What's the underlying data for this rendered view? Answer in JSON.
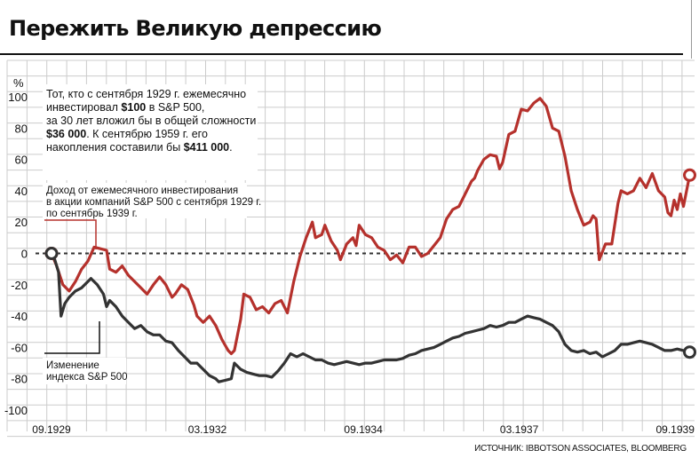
{
  "title": "Пережить Великую депрессию",
  "colors": {
    "red": "#b5312c",
    "black": "#333333",
    "grid": "#cccccc"
  },
  "annotation": {
    "line1": "Тот, кто с сентября 1929 г. ежемесячно",
    "line2_a": "инвестировал ",
    "line2_b": "$100",
    "line2_c": " в S&P 500,",
    "line3": "за 30 лет вложил бы в общей сложности",
    "line4_a": "$36 000",
    "line4_b": ". К сентябрю 1959 г. его",
    "line5_a": "накопления составили бы ",
    "line5_b": "$411 000",
    "line5_c": "."
  },
  "callout_red": {
    "line1": "Доход от ежемесячного инвестирования",
    "line2": "в акции компаний S&P 500 с сентября 1929 г.",
    "line3": "по сентябрь 1939 г."
  },
  "callout_black": {
    "line1": "Изменение",
    "line2": "индекса S&P 500"
  },
  "source": "ИСТОЧНИК: IBBOTSON ASSOCIATES, BLOOMBERG",
  "chart_data": {
    "type": "line",
    "ylabel": "%",
    "ylim": [
      -100,
      100
    ],
    "yticks": [
      100,
      80,
      60,
      40,
      20,
      0,
      -20,
      -40,
      -60,
      -80,
      -100
    ],
    "xlim": [
      1929.667,
      1939.75
    ],
    "xtick_labels": [
      {
        "label": "09.1929",
        "x": 1929.667
      },
      {
        "label": "03.1932",
        "x": 1932.167
      },
      {
        "label": "09.1934",
        "x": 1934.667
      },
      {
        "label": "03.1937",
        "x": 1937.167
      },
      {
        "label": "09.1939",
        "x": 1939.667
      }
    ],
    "series": [
      {
        "name": "Доход от ежемесячного инвестирования",
        "color": "#b5312c",
        "points": [
          [
            1929.667,
            0
          ],
          [
            1929.75,
            -8
          ],
          [
            1929.85,
            -20
          ],
          [
            1929.95,
            -24
          ],
          [
            1930.05,
            -18
          ],
          [
            1930.15,
            -10
          ],
          [
            1930.25,
            -5
          ],
          [
            1930.35,
            4
          ],
          [
            1930.45,
            3
          ],
          [
            1930.55,
            2
          ],
          [
            1930.6,
            -10
          ],
          [
            1930.7,
            -12
          ],
          [
            1930.8,
            -8
          ],
          [
            1930.9,
            -14
          ],
          [
            1931.0,
            -18
          ],
          [
            1931.1,
            -22
          ],
          [
            1931.2,
            -26
          ],
          [
            1931.3,
            -20
          ],
          [
            1931.4,
            -15
          ],
          [
            1931.5,
            -20
          ],
          [
            1931.6,
            -28
          ],
          [
            1931.65,
            -26
          ],
          [
            1931.75,
            -20
          ],
          [
            1931.85,
            -23
          ],
          [
            1931.95,
            -33
          ],
          [
            1932.0,
            -40
          ],
          [
            1932.1,
            -44
          ],
          [
            1932.2,
            -40
          ],
          [
            1932.3,
            -46
          ],
          [
            1932.4,
            -55
          ],
          [
            1932.5,
            -62
          ],
          [
            1932.55,
            -64
          ],
          [
            1932.6,
            -62
          ],
          [
            1932.7,
            -42
          ],
          [
            1932.75,
            -26
          ],
          [
            1932.85,
            -28
          ],
          [
            1932.95,
            -36
          ],
          [
            1933.05,
            -34
          ],
          [
            1933.15,
            -38
          ],
          [
            1933.25,
            -32
          ],
          [
            1933.35,
            -30
          ],
          [
            1933.45,
            -38
          ],
          [
            1933.55,
            -18
          ],
          [
            1933.65,
            -2
          ],
          [
            1933.75,
            10
          ],
          [
            1933.85,
            20
          ],
          [
            1933.9,
            10
          ],
          [
            1934.0,
            12
          ],
          [
            1934.05,
            18
          ],
          [
            1934.15,
            8
          ],
          [
            1934.25,
            2
          ],
          [
            1934.3,
            -4
          ],
          [
            1934.4,
            6
          ],
          [
            1934.5,
            10
          ],
          [
            1934.55,
            5
          ],
          [
            1934.6,
            18
          ],
          [
            1934.7,
            12
          ],
          [
            1934.8,
            10
          ],
          [
            1934.9,
            4
          ],
          [
            1935.0,
            2
          ],
          [
            1935.1,
            -4
          ],
          [
            1935.2,
            -1
          ],
          [
            1935.3,
            -6
          ],
          [
            1935.4,
            4
          ],
          [
            1935.5,
            4
          ],
          [
            1935.6,
            -2
          ],
          [
            1935.7,
            0
          ],
          [
            1935.8,
            5
          ],
          [
            1935.9,
            10
          ],
          [
            1936.0,
            22
          ],
          [
            1936.1,
            28
          ],
          [
            1936.2,
            30
          ],
          [
            1936.3,
            38
          ],
          [
            1936.4,
            46
          ],
          [
            1936.45,
            48
          ],
          [
            1936.5,
            53
          ],
          [
            1936.6,
            60
          ],
          [
            1936.7,
            63
          ],
          [
            1936.8,
            62
          ],
          [
            1936.85,
            54
          ],
          [
            1936.9,
            58
          ],
          [
            1937.0,
            76
          ],
          [
            1937.1,
            78
          ],
          [
            1937.2,
            92
          ],
          [
            1937.3,
            91
          ],
          [
            1937.4,
            96
          ],
          [
            1937.5,
            99
          ],
          [
            1937.6,
            94
          ],
          [
            1937.7,
            80
          ],
          [
            1937.8,
            78
          ],
          [
            1937.9,
            62
          ],
          [
            1938.0,
            40
          ],
          [
            1938.1,
            28
          ],
          [
            1938.2,
            18
          ],
          [
            1938.3,
            20
          ],
          [
            1938.35,
            24
          ],
          [
            1938.4,
            22
          ],
          [
            1938.45,
            -4
          ],
          [
            1938.55,
            6
          ],
          [
            1938.65,
            6
          ],
          [
            1938.75,
            32
          ],
          [
            1938.8,
            40
          ],
          [
            1938.9,
            38
          ],
          [
            1939.0,
            40
          ],
          [
            1939.1,
            48
          ],
          [
            1939.2,
            42
          ],
          [
            1939.3,
            51
          ],
          [
            1939.4,
            40
          ],
          [
            1939.5,
            36
          ],
          [
            1939.55,
            26
          ],
          [
            1939.6,
            24
          ],
          [
            1939.65,
            34
          ],
          [
            1939.7,
            28
          ],
          [
            1939.75,
            38
          ],
          [
            1939.8,
            30
          ],
          [
            1939.9,
            50
          ]
        ]
      },
      {
        "name": "Изменение индекса S&P 500",
        "color": "#333333",
        "points": [
          [
            1929.667,
            0
          ],
          [
            1929.72,
            -4
          ],
          [
            1929.78,
            -12
          ],
          [
            1929.82,
            -40
          ],
          [
            1929.88,
            -32
          ],
          [
            1929.95,
            -28
          ],
          [
            1930.05,
            -24
          ],
          [
            1930.15,
            -22
          ],
          [
            1930.25,
            -18
          ],
          [
            1930.3,
            -16
          ],
          [
            1930.4,
            -20
          ],
          [
            1930.5,
            -26
          ],
          [
            1930.55,
            -34
          ],
          [
            1930.6,
            -30
          ],
          [
            1930.7,
            -34
          ],
          [
            1930.8,
            -40
          ],
          [
            1930.9,
            -44
          ],
          [
            1931.0,
            -48
          ],
          [
            1931.1,
            -46
          ],
          [
            1931.2,
            -50
          ],
          [
            1931.3,
            -52
          ],
          [
            1931.4,
            -52
          ],
          [
            1931.5,
            -56
          ],
          [
            1931.6,
            -57
          ],
          [
            1931.7,
            -62
          ],
          [
            1931.8,
            -66
          ],
          [
            1931.9,
            -70
          ],
          [
            1932.0,
            -70
          ],
          [
            1932.1,
            -74
          ],
          [
            1932.2,
            -78
          ],
          [
            1932.3,
            -80
          ],
          [
            1932.35,
            -82
          ],
          [
            1932.45,
            -81
          ],
          [
            1932.55,
            -80
          ],
          [
            1932.6,
            -70
          ],
          [
            1932.7,
            -74
          ],
          [
            1932.8,
            -76
          ],
          [
            1932.9,
            -77
          ],
          [
            1933.0,
            -78
          ],
          [
            1933.1,
            -78
          ],
          [
            1933.2,
            -79
          ],
          [
            1933.3,
            -75
          ],
          [
            1933.4,
            -70
          ],
          [
            1933.5,
            -64
          ],
          [
            1933.6,
            -66
          ],
          [
            1933.7,
            -64
          ],
          [
            1933.8,
            -66
          ],
          [
            1933.9,
            -68
          ],
          [
            1934.0,
            -68
          ],
          [
            1934.1,
            -70
          ],
          [
            1934.2,
            -71
          ],
          [
            1934.3,
            -70
          ],
          [
            1934.4,
            -69
          ],
          [
            1934.5,
            -70
          ],
          [
            1934.6,
            -71
          ],
          [
            1934.7,
            -70
          ],
          [
            1934.8,
            -70
          ],
          [
            1934.9,
            -69
          ],
          [
            1935.0,
            -68
          ],
          [
            1935.1,
            -68
          ],
          [
            1935.2,
            -68
          ],
          [
            1935.3,
            -67
          ],
          [
            1935.4,
            -65
          ],
          [
            1935.5,
            -64
          ],
          [
            1935.6,
            -62
          ],
          [
            1935.7,
            -61
          ],
          [
            1935.8,
            -60
          ],
          [
            1935.9,
            -58
          ],
          [
            1936.0,
            -56
          ],
          [
            1936.1,
            -54
          ],
          [
            1936.2,
            -53
          ],
          [
            1936.3,
            -51
          ],
          [
            1936.4,
            -50
          ],
          [
            1936.5,
            -49
          ],
          [
            1936.6,
            -48
          ],
          [
            1936.7,
            -46
          ],
          [
            1936.8,
            -47
          ],
          [
            1936.9,
            -46
          ],
          [
            1937.0,
            -44
          ],
          [
            1937.1,
            -44
          ],
          [
            1937.2,
            -42
          ],
          [
            1937.3,
            -40
          ],
          [
            1937.4,
            -41
          ],
          [
            1937.5,
            -42
          ],
          [
            1937.6,
            -44
          ],
          [
            1937.7,
            -46
          ],
          [
            1937.8,
            -50
          ],
          [
            1937.9,
            -58
          ],
          [
            1938.0,
            -62
          ],
          [
            1938.1,
            -63
          ],
          [
            1938.2,
            -62
          ],
          [
            1938.3,
            -64
          ],
          [
            1938.4,
            -63
          ],
          [
            1938.5,
            -66
          ],
          [
            1938.6,
            -64
          ],
          [
            1938.7,
            -62
          ],
          [
            1938.8,
            -58
          ],
          [
            1938.9,
            -58
          ],
          [
            1939.0,
            -57
          ],
          [
            1939.1,
            -56
          ],
          [
            1939.2,
            -57
          ],
          [
            1939.3,
            -58
          ],
          [
            1939.4,
            -60
          ],
          [
            1939.5,
            -62
          ],
          [
            1939.6,
            -62
          ],
          [
            1939.7,
            -61
          ],
          [
            1939.8,
            -62
          ],
          [
            1939.9,
            -63
          ]
        ]
      }
    ]
  }
}
